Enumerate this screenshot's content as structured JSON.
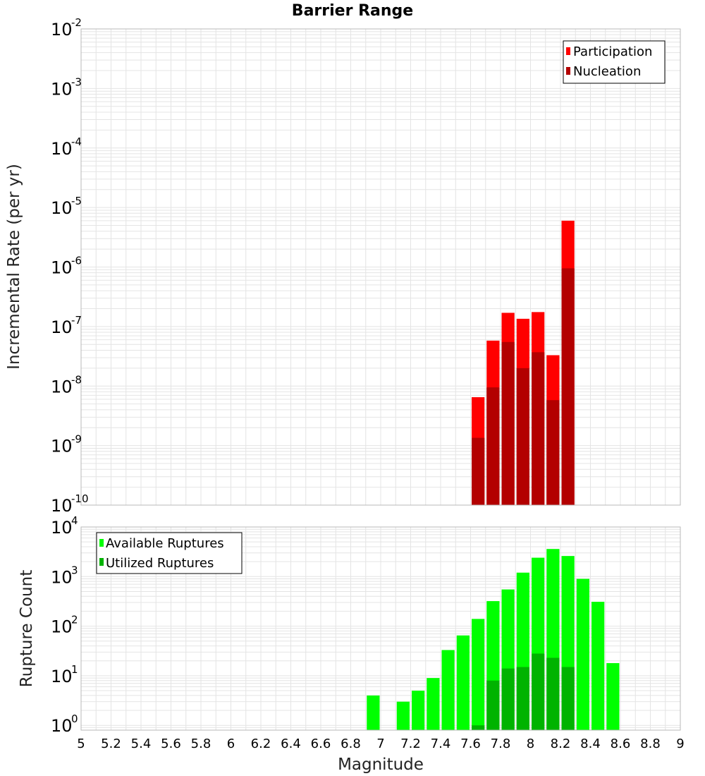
{
  "colors": {
    "participation": "#ff0000",
    "nucleation": "#b30000",
    "available": "#00ff00",
    "utilized": "#00b300",
    "grid": "#e4e4e4",
    "frame": "#b8b8b8"
  },
  "chart_data": [
    {
      "type": "bar",
      "title": "Barrier Range",
      "xlabel": "Magnitude",
      "ylabel": "Incremental Rate (per yr)",
      "yscale": "log",
      "ylim": [
        1e-10,
        0.01
      ],
      "xlim": [
        5,
        9
      ],
      "y_tick_exponents": [
        "-2",
        "-3",
        "-4",
        "-5",
        "-6",
        "-7",
        "-8",
        "-9",
        "-10"
      ],
      "legend": {
        "placement": "top-right",
        "entries": [
          "Participation",
          "Nucleation"
        ]
      },
      "x": [
        7.65,
        7.75,
        7.85,
        7.95,
        8.05,
        8.15,
        8.25
      ],
      "series": [
        {
          "name": "Participation",
          "values": [
            6.5e-09,
            5.8e-08,
            1.7e-07,
            1.35e-07,
            1.75e-07,
            3.3e-08,
            6e-06
          ]
        },
        {
          "name": "Nucleation",
          "values": [
            1.35e-09,
            9.5e-09,
            5.5e-08,
            2e-08,
            3.7e-08,
            5.8e-09,
            9.5e-07
          ]
        }
      ]
    },
    {
      "type": "bar",
      "xlabel": "Magnitude",
      "ylabel": "Rupture Count",
      "yscale": "log",
      "ylim": [
        0.8,
        10000
      ],
      "xlim": [
        5,
        9
      ],
      "x_tick_labels": [
        "5",
        "5.2",
        "5.4",
        "5.6",
        "5.8",
        "6",
        "6.2",
        "6.4",
        "6.6",
        "6.8",
        "7",
        "7.2",
        "7.4",
        "7.6",
        "7.8",
        "8",
        "8.2",
        "8.4",
        "8.6",
        "8.8",
        "9"
      ],
      "y_tick_exponents": [
        "4",
        "3",
        "2",
        "1",
        "0"
      ],
      "legend": {
        "placement": "top-left",
        "entries": [
          "Available Ruptures",
          "Utilized Ruptures"
        ]
      },
      "x": [
        6.95,
        7.05,
        7.15,
        7.25,
        7.35,
        7.45,
        7.55,
        7.65,
        7.75,
        7.85,
        7.95,
        8.05,
        8.15,
        8.25,
        8.35,
        8.45,
        8.55
      ],
      "series": [
        {
          "name": "Available Ruptures",
          "values": [
            4,
            0,
            3,
            5,
            9,
            33,
            65,
            140,
            320,
            550,
            1200,
            2400,
            3600,
            2600,
            900,
            310,
            18
          ]
        },
        {
          "name": "Utilized Ruptures",
          "values": [
            0,
            0,
            0,
            0,
            0,
            0,
            0,
            1,
            8,
            14,
            15,
            28,
            23,
            15,
            0,
            0,
            0
          ]
        }
      ]
    }
  ]
}
